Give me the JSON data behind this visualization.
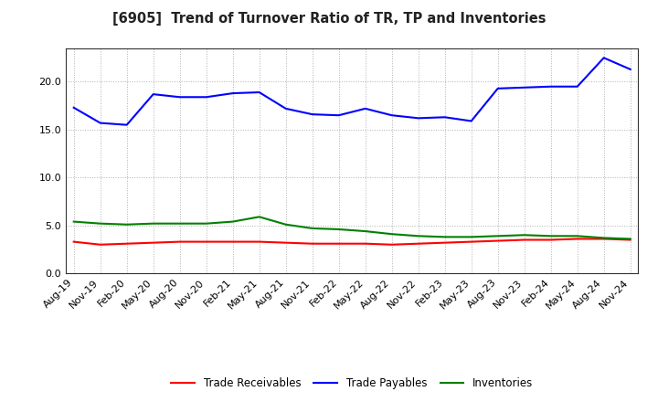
{
  "title": "[6905]  Trend of Turnover Ratio of TR, TP and Inventories",
  "x_labels": [
    "Aug-19",
    "Nov-19",
    "Feb-20",
    "May-20",
    "Aug-20",
    "Nov-20",
    "Feb-21",
    "May-21",
    "Aug-21",
    "Nov-21",
    "Feb-22",
    "May-22",
    "Aug-22",
    "Nov-22",
    "Feb-23",
    "May-23",
    "Aug-23",
    "Nov-23",
    "Feb-24",
    "May-24",
    "Aug-24",
    "Nov-24"
  ],
  "trade_receivables": [
    3.3,
    3.0,
    3.1,
    3.2,
    3.3,
    3.3,
    3.3,
    3.3,
    3.2,
    3.1,
    3.1,
    3.1,
    3.0,
    3.1,
    3.2,
    3.3,
    3.4,
    3.5,
    3.5,
    3.6,
    3.6,
    3.5
  ],
  "trade_payables": [
    17.3,
    15.7,
    15.5,
    18.7,
    18.4,
    18.4,
    18.8,
    18.9,
    17.2,
    16.6,
    16.5,
    17.2,
    16.5,
    16.2,
    16.3,
    15.9,
    19.3,
    19.4,
    19.5,
    19.5,
    22.5,
    21.3
  ],
  "inventories": [
    5.4,
    5.2,
    5.1,
    5.2,
    5.2,
    5.2,
    5.4,
    5.9,
    5.1,
    4.7,
    4.6,
    4.4,
    4.1,
    3.9,
    3.8,
    3.8,
    3.9,
    4.0,
    3.9,
    3.9,
    3.7,
    3.6
  ],
  "ylim": [
    0.0,
    23.5
  ],
  "yticks": [
    0.0,
    5.0,
    10.0,
    15.0,
    20.0
  ],
  "tr_color": "#ff0000",
  "tp_color": "#0000ff",
  "inv_color": "#008000",
  "bg_color": "#ffffff",
  "grid_color": "#b0b0b0",
  "legend_labels": [
    "Trade Receivables",
    "Trade Payables",
    "Inventories"
  ]
}
